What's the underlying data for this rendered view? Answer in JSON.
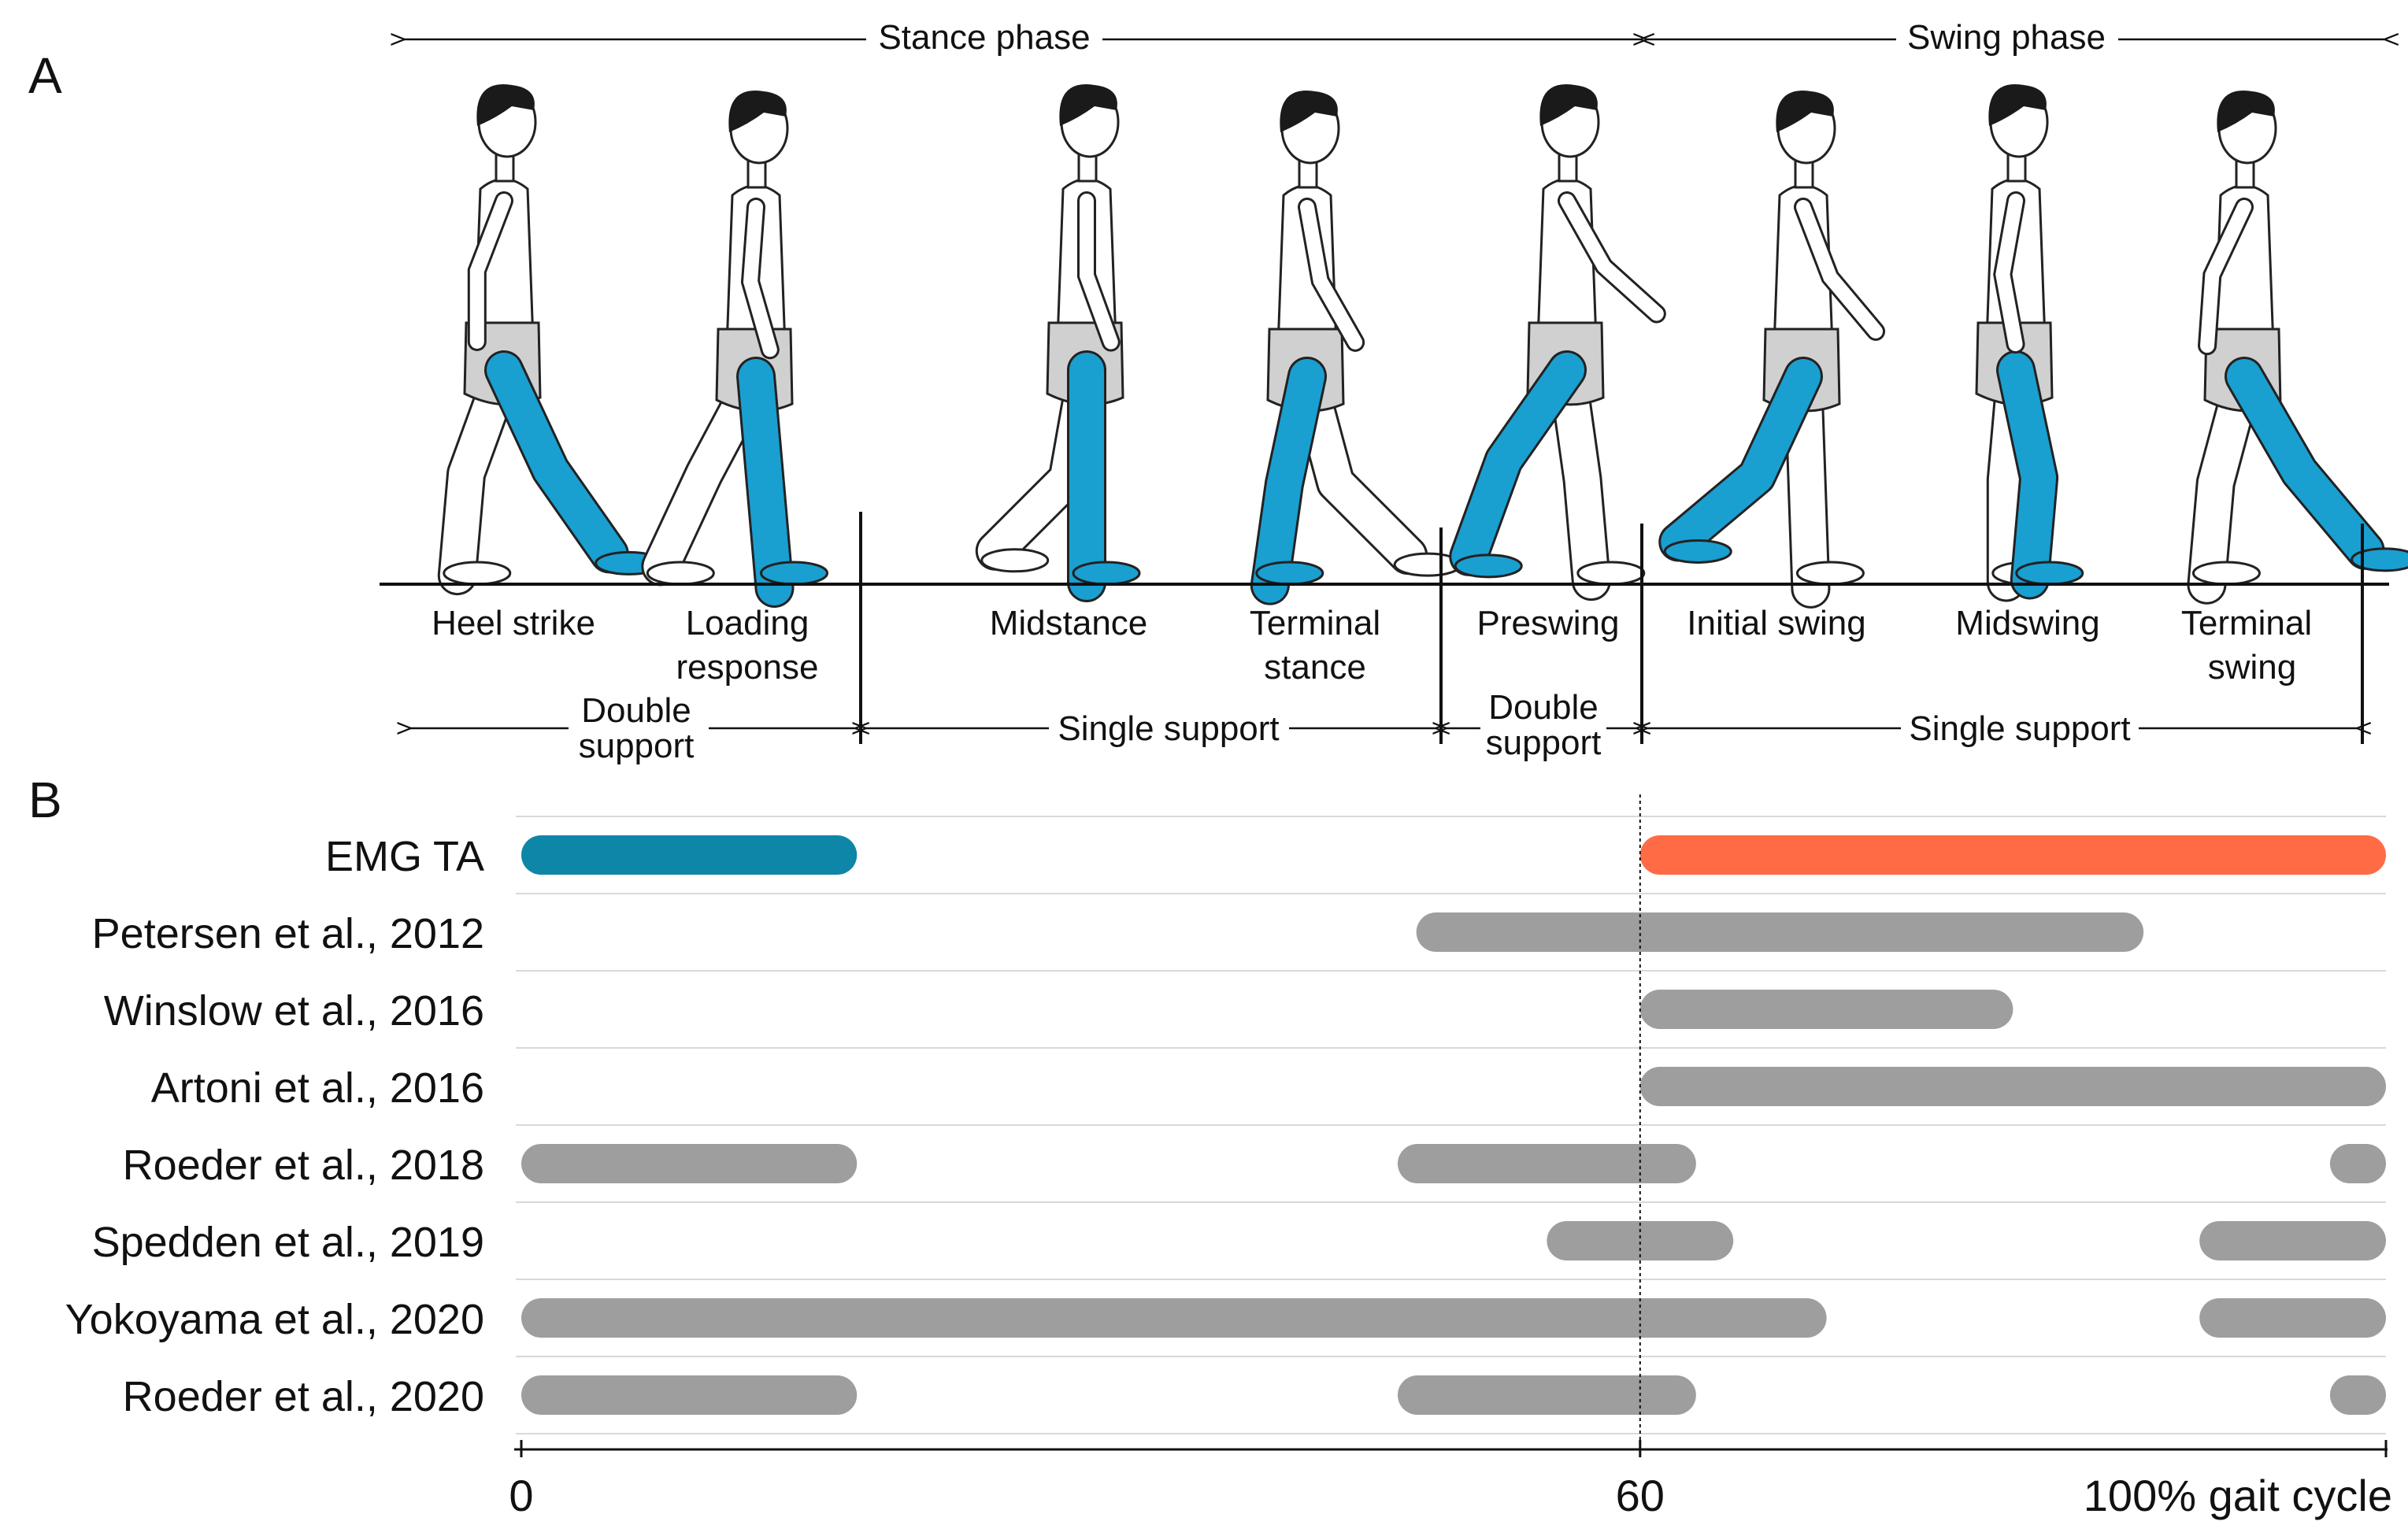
{
  "panel_a": {
    "label": "A",
    "phases": [
      {
        "id": "stance",
        "label": "Stance phase"
      },
      {
        "id": "swing",
        "label": "Swing phase"
      }
    ],
    "figures": [
      {
        "id": "heel-strike",
        "label_lines": [
          "Heel strike"
        ]
      },
      {
        "id": "loading-response",
        "label_lines": [
          "Loading",
          "response"
        ]
      },
      {
        "id": "midstance",
        "label_lines": [
          "Midstance"
        ]
      },
      {
        "id": "terminal-stance",
        "label_lines": [
          "Terminal",
          "stance"
        ]
      },
      {
        "id": "preswing",
        "label_lines": [
          "Preswing"
        ]
      },
      {
        "id": "initial-swing",
        "label_lines": [
          "Initial swing"
        ]
      },
      {
        "id": "midswing",
        "label_lines": [
          "Midswing"
        ]
      },
      {
        "id": "terminal-swing",
        "label_lines": [
          "Terminal",
          "swing"
        ]
      }
    ],
    "supports": [
      {
        "id": "double-1",
        "label_lines": [
          "Double",
          "support"
        ]
      },
      {
        "id": "single-1",
        "label_lines": [
          "Single support"
        ]
      },
      {
        "id": "double-2",
        "label_lines": [
          "Double",
          "support"
        ]
      },
      {
        "id": "single-2",
        "label_lines": [
          "Single support"
        ]
      }
    ],
    "colors": {
      "leg": "#1a9fd1",
      "skin": "#ffffff",
      "shorts": "#d0d0d0",
      "hair": "#1a1a1a"
    }
  },
  "panel_b": {
    "label": "B",
    "chart_data": {
      "type": "gantt",
      "x_range": [
        0,
        100
      ],
      "x_ticks": [
        {
          "value": 0,
          "label": "0"
        },
        {
          "value": 60,
          "label": "60"
        },
        {
          "value": 100,
          "label": "100% gait cycle"
        }
      ],
      "reference_line": 60,
      "rows": [
        {
          "label": "EMG TA",
          "intervals": [
            {
              "start": 0,
              "end": 18,
              "color": "#0e86a8"
            },
            {
              "start": 60,
              "end": 100,
              "color": "#ff6b45"
            }
          ]
        },
        {
          "label": "Petersen et al., 2012",
          "intervals": [
            {
              "start": 48,
              "end": 87,
              "color": "#9e9e9e"
            }
          ]
        },
        {
          "label": "Winslow et al., 2016",
          "intervals": [
            {
              "start": 60,
              "end": 80,
              "color": "#9e9e9e"
            }
          ]
        },
        {
          "label": "Artoni et al., 2016",
          "intervals": [
            {
              "start": 60,
              "end": 100,
              "color": "#9e9e9e"
            }
          ]
        },
        {
          "label": "Roeder et al., 2018",
          "intervals": [
            {
              "start": 0,
              "end": 18,
              "color": "#9e9e9e"
            },
            {
              "start": 47,
              "end": 63,
              "color": "#9e9e9e"
            },
            {
              "start": 97,
              "end": 100,
              "color": "#9e9e9e"
            }
          ]
        },
        {
          "label": "Spedden et al., 2019",
          "intervals": [
            {
              "start": 55,
              "end": 65,
              "color": "#9e9e9e"
            },
            {
              "start": 90,
              "end": 100,
              "color": "#9e9e9e"
            }
          ]
        },
        {
          "label": "Yokoyama et al., 2020",
          "intervals": [
            {
              "start": 0,
              "end": 70,
              "color": "#9e9e9e"
            },
            {
              "start": 90,
              "end": 100,
              "color": "#9e9e9e"
            }
          ]
        },
        {
          "label": "Roeder et al., 2020",
          "intervals": [
            {
              "start": 0,
              "end": 18,
              "color": "#9e9e9e"
            },
            {
              "start": 47,
              "end": 63,
              "color": "#9e9e9e"
            },
            {
              "start": 97,
              "end": 100,
              "color": "#9e9e9e"
            }
          ]
        }
      ]
    }
  }
}
